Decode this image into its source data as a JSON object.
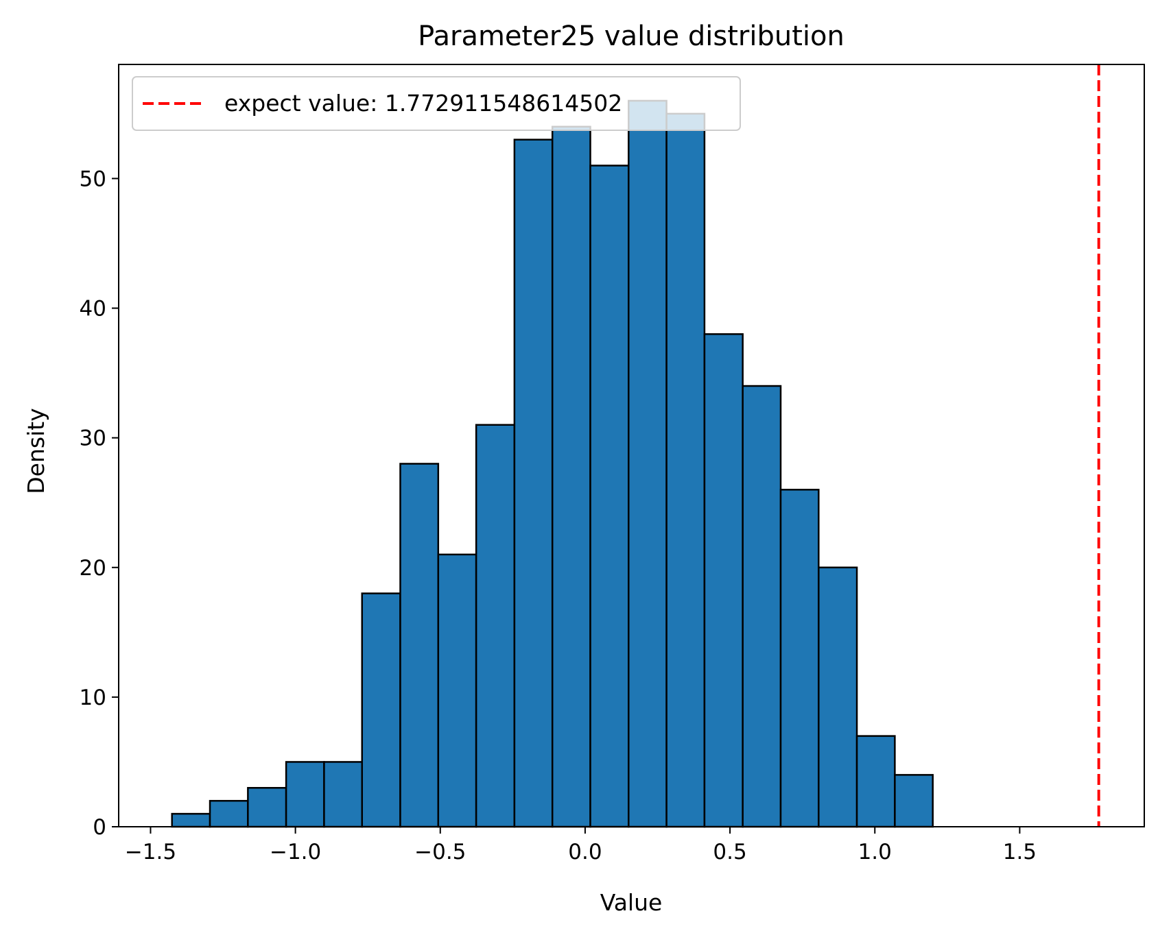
{
  "chart_data": {
    "type": "bar",
    "title": "Parameter25 value distribution",
    "xlabel": "Value",
    "ylabel": "Density",
    "xlim": [
      -1.61,
      1.93
    ],
    "ylim": [
      0,
      58.8
    ],
    "xticks": [
      -1.5,
      -1.0,
      -0.5,
      0.0,
      0.5,
      1.0,
      1.5
    ],
    "xtick_labels": [
      "−1.5",
      "−1.0",
      "−0.5",
      "0.0",
      "0.5",
      "1.0",
      "1.5"
    ],
    "yticks": [
      0,
      10,
      20,
      30,
      40,
      50
    ],
    "ytick_labels": [
      "0",
      "10",
      "20",
      "30",
      "40",
      "50"
    ],
    "bin_edges": [
      -1.426,
      -1.295,
      -1.164,
      -1.032,
      -0.901,
      -0.77,
      -0.638,
      -0.507,
      -0.376,
      -0.244,
      -0.113,
      0.018,
      0.15,
      0.281,
      0.412,
      0.544,
      0.675,
      0.806,
      0.938,
      1.069,
      1.2
    ],
    "values": [
      1,
      2,
      3,
      5,
      5,
      18,
      28,
      21,
      31,
      53,
      54,
      51,
      56,
      55,
      38,
      34,
      26,
      20,
      7,
      4
    ],
    "bar_color": "#1f77b4",
    "edge_color": "#000000",
    "expect_value": 1.772911548614502,
    "expect_color": "#ff0000",
    "legend": {
      "label": "expect value: 1.772911548614502",
      "location": "upper-left"
    },
    "grid": false
  }
}
